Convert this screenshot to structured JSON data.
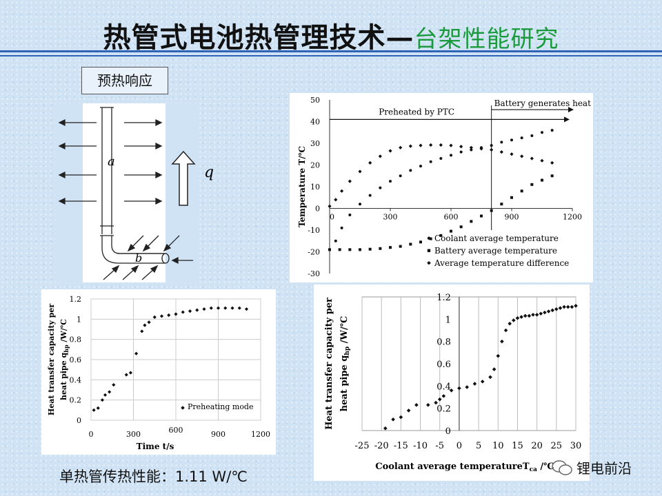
{
  "slide": {
    "title_main": "热管式电池热管理技术—",
    "title_sub": "台架性能研究",
    "section_tag": "预热响应",
    "footer": "单热管传热性能：1.11 W/℃",
    "brand": "锂电前沿"
  },
  "diagram": {
    "label_a": "a",
    "label_b": "b",
    "label_q": "q"
  },
  "chart_data": [
    {
      "type": "scatter",
      "title": "",
      "xlabel": "",
      "ylabel": "Temperature T/℃",
      "xlim": [
        0,
        1200
      ],
      "ylim": [
        -30,
        50
      ],
      "x_ticks": [
        "0",
        "300",
        "600",
        "900",
        "1200"
      ],
      "y_ticks": [
        "50",
        "40",
        "30",
        "20",
        "10",
        "0",
        "-10",
        "-20",
        "-30"
      ],
      "annotations": [
        "Preheated by PTC",
        "Battery generates heat"
      ],
      "event_x": 800,
      "legend_position": "bottom-right",
      "series": [
        {
          "name": "Coolant average temperature",
          "marker": "circle",
          "x": [
            0,
            30,
            60,
            100,
            150,
            200,
            250,
            300,
            350,
            400,
            450,
            500,
            550,
            600,
            650,
            700,
            750,
            800,
            850,
            900,
            950,
            1000,
            1050,
            1100
          ],
          "y": [
            -19,
            -15,
            -9,
            -3,
            2,
            6,
            9.5,
            12.5,
            15,
            17.5,
            19.5,
            21.5,
            23,
            24.5,
            26,
            27,
            28,
            29,
            30.5,
            31.5,
            32.5,
            33.5,
            35,
            36
          ]
        },
        {
          "name": "Battery average temperature",
          "marker": "square",
          "x": [
            0,
            50,
            100,
            150,
            200,
            250,
            300,
            350,
            400,
            450,
            500,
            550,
            600,
            650,
            700,
            750,
            800,
            850,
            900,
            950,
            1000,
            1050,
            1100
          ],
          "y": [
            -19,
            -19,
            -19,
            -19,
            -18.8,
            -18.5,
            -18,
            -17.5,
            -16.5,
            -15.5,
            -14,
            -12.5,
            -10.5,
            -8.5,
            -6,
            -3.5,
            -1,
            2,
            5,
            8,
            11,
            13,
            15
          ]
        },
        {
          "name": "Average temperature difference",
          "marker": "diamond",
          "x": [
            0,
            30,
            60,
            100,
            150,
            200,
            250,
            300,
            350,
            400,
            450,
            500,
            550,
            600,
            650,
            700,
            750,
            800,
            850,
            900,
            950,
            1000,
            1050,
            1100
          ],
          "y": [
            1,
            4,
            8,
            12.5,
            17,
            21,
            24,
            26.5,
            28,
            28.7,
            29,
            29.2,
            29.2,
            29,
            28.5,
            28,
            27.5,
            27,
            26,
            25,
            24,
            23,
            22,
            21
          ]
        }
      ]
    },
    {
      "type": "scatter",
      "title": "",
      "xlabel": "Time t/s",
      "ylabel_line1": "Heat transfer capacity per",
      "ylabel_line2": "heat pipe  q",
      "ylabel_sub": "hp",
      "ylabel_unit": "/W/℃",
      "xlim": [
        0,
        1200
      ],
      "ylim": [
        0,
        1.2
      ],
      "x_ticks": [
        "0",
        "300",
        "600",
        "900",
        "1200"
      ],
      "y_ticks": [
        "1.2",
        "1",
        "0.8",
        "0.6",
        "0.4",
        "0.2",
        "0"
      ],
      "legend_position": "bottom-right",
      "series": [
        {
          "name": "Preheating mode",
          "marker": "diamond",
          "x": [
            20,
            50,
            80,
            100,
            130,
            160,
            250,
            280,
            320,
            360,
            380,
            410,
            450,
            500,
            550,
            600,
            650,
            700,
            750,
            800,
            850,
            900,
            950,
            1000,
            1050,
            1100
          ],
          "y": [
            0.1,
            0.12,
            0.2,
            0.25,
            0.28,
            0.35,
            0.45,
            0.47,
            0.66,
            0.88,
            0.94,
            0.97,
            1.02,
            1.03,
            1.04,
            1.05,
            1.07,
            1.08,
            1.09,
            1.1,
            1.11,
            1.11,
            1.11,
            1.11,
            1.11,
            1.1
          ]
        }
      ]
    },
    {
      "type": "scatter",
      "title": "",
      "xlabel": "Coolant average temperature",
      "xlabel_sub": "ca",
      "xlabel_prefix": "T",
      "xlabel_unit": "/℃",
      "ylabel_line1": "Heat  transfer capacity per",
      "ylabel_line2": "heat pipe   q",
      "ylabel_sub": "hp",
      "ylabel_unit": "/W/℃",
      "xlim": [
        -25,
        30
      ],
      "ylim": [
        0,
        1.2
      ],
      "x_ticks": [
        "-25",
        "-20",
        "-15",
        "-10",
        "-5",
        "0",
        "5",
        "10",
        "15",
        "20",
        "25",
        "30"
      ],
      "y_ticks": [
        "1.2",
        "1",
        "0.8",
        "0.6",
        "0.4",
        "0.2",
        "0"
      ],
      "series": [
        {
          "name": "",
          "marker": "diamond",
          "x": [
            -19,
            -17,
            -15,
            -13,
            -11,
            -8,
            -6,
            -5,
            -4,
            -2,
            0,
            2,
            4,
            6,
            8,
            9,
            10,
            11,
            12,
            13,
            14,
            15,
            16,
            17,
            18,
            19,
            20,
            21,
            22,
            23,
            24,
            25,
            26,
            27,
            28,
            29,
            30
          ],
          "y": [
            0.02,
            0.1,
            0.12,
            0.18,
            0.23,
            0.23,
            0.25,
            0.28,
            0.31,
            0.36,
            0.38,
            0.39,
            0.42,
            0.44,
            0.48,
            0.55,
            0.67,
            0.8,
            0.9,
            0.96,
            0.99,
            1.01,
            1.02,
            1.03,
            1.03,
            1.04,
            1.04,
            1.05,
            1.06,
            1.07,
            1.08,
            1.09,
            1.1,
            1.11,
            1.11,
            1.11,
            1.12
          ]
        }
      ]
    }
  ]
}
